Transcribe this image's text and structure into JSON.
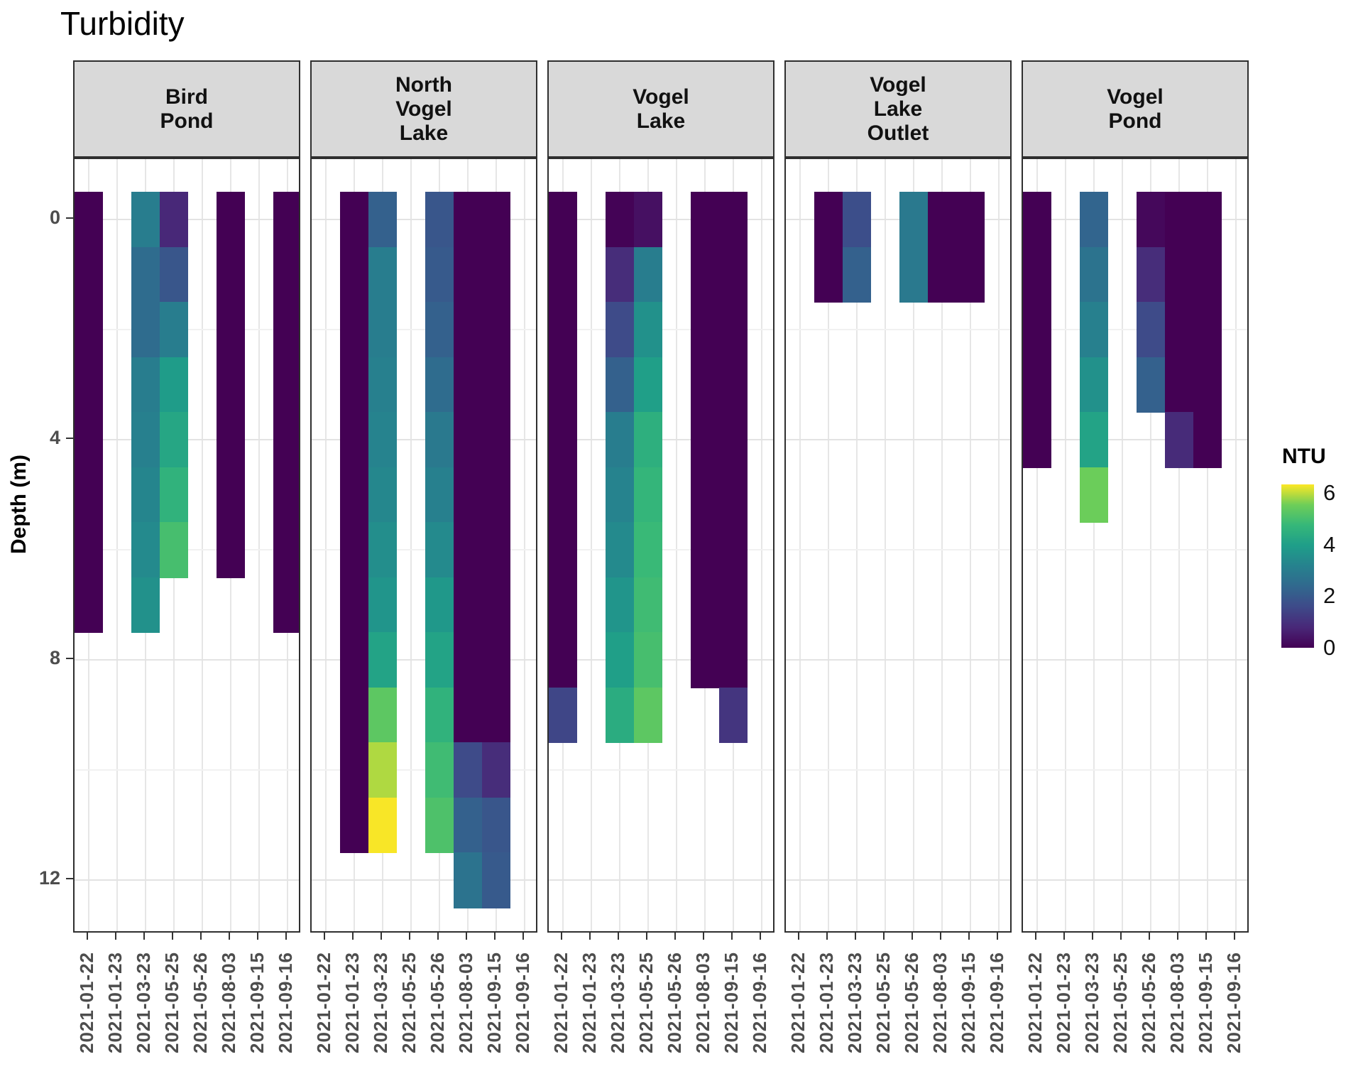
{
  "title": "Turbidity",
  "legend": {
    "title": "NTU",
    "ticks": [
      6,
      4,
      2,
      0
    ],
    "scale_max": 6.33
  },
  "colors": {
    "strip_background": "#d9d9d9",
    "panel_border": "#2f2f2f",
    "axis_text": "#4d4d4d",
    "viridis_anchors": [
      "#440154",
      "#482878",
      "#3e4a89",
      "#31688e",
      "#26828e",
      "#1f9e89",
      "#35b779",
      "#6ece58",
      "#fde725"
    ]
  },
  "chart_data": {
    "type": "heatmap",
    "title": "Turbidity",
    "xlabel": "",
    "ylabel": "Depth (m)",
    "grid": true,
    "legend_position": "right",
    "x_categories": [
      "2021-01-22",
      "2021-01-23",
      "2021-03-23",
      "2021-05-25",
      "2021-05-26",
      "2021-08-03",
      "2021-09-15",
      "2021-09-16"
    ],
    "y_axis": {
      "label": "Depth (m)",
      "ticks": [
        0,
        4,
        8,
        12
      ],
      "ylim": [
        -1.1,
        13.0
      ],
      "tile_height_m": 1,
      "first_tile_center_m": 0
    },
    "color_scale": {
      "name": "viridis",
      "label": "NTU",
      "domain": [
        0,
        6.33
      ],
      "legend_ticks": [
        6,
        4,
        2,
        0
      ]
    },
    "facets": [
      {
        "site": "Bird Pond",
        "label_lines": [
          "Bird",
          "Pond"
        ],
        "columns": [
          {
            "date": "2021-01-22",
            "values": [
              0,
              0,
              0,
              0,
              0,
              0,
              0,
              0
            ]
          },
          {
            "date": "2021-03-23",
            "values": [
              3.0,
              2.5,
              2.5,
              3.0,
              3.1,
              3.25,
              3.4,
              3.6
            ]
          },
          {
            "date": "2021-05-25",
            "values": [
              0.8,
              1.9,
              3.0,
              3.9,
              4.2,
              4.6,
              5.0
            ]
          },
          {
            "date": "2021-08-03",
            "values": [
              0,
              0,
              0,
              0,
              0,
              0,
              0
            ]
          },
          {
            "date": "2021-09-16",
            "values": [
              0,
              0,
              0,
              0,
              0,
              0,
              0,
              0
            ]
          }
        ]
      },
      {
        "site": "North Vogel Lake",
        "label_lines": [
          "North",
          "Vogel",
          "Lake"
        ],
        "columns": [
          {
            "date": "2021-01-23",
            "values": [
              0,
              0,
              0,
              0,
              0,
              0,
              0,
              0,
              0,
              0,
              0,
              0
            ]
          },
          {
            "date": "2021-03-23",
            "values": [
              2.2,
              3.0,
              3.0,
              3.1,
              3.2,
              3.3,
              3.5,
              3.7,
              4.1,
              5.3,
              5.9,
              6.3
            ]
          },
          {
            "date": "2021-05-26",
            "values": [
              1.9,
              2.0,
              2.2,
              2.5,
              2.9,
              3.1,
              3.4,
              3.8,
              4.1,
              4.6,
              4.9,
              5.1
            ]
          },
          {
            "date": "2021-08-03",
            "values": [
              0,
              0,
              0,
              0,
              0,
              0,
              0,
              0,
              0,
              0,
              1.6,
              2.2,
              2.7
            ]
          },
          {
            "date": "2021-09-15",
            "values": [
              0,
              0,
              0,
              0,
              0,
              0,
              0,
              0,
              0,
              0,
              0.9,
              1.9,
              2.0
            ]
          }
        ]
      },
      {
        "site": "Vogel Lake",
        "label_lines": [
          "Vogel",
          "Lake"
        ],
        "columns": [
          {
            "date": "2021-01-22",
            "values": [
              0,
              0,
              0,
              0,
              0,
              0,
              0,
              0,
              0,
              1.5
            ]
          },
          {
            "date": "2021-03-23",
            "values": [
              0.05,
              0.9,
              1.6,
              2.2,
              3.0,
              3.2,
              3.4,
              3.7,
              4.0,
              4.4
            ]
          },
          {
            "date": "2021-05-25",
            "values": [
              0.3,
              3.0,
              3.6,
              4.0,
              4.5,
              4.7,
              4.8,
              4.9,
              5.0,
              5.3
            ]
          },
          {
            "date": "2021-08-03",
            "values": [
              0,
              0,
              0,
              0,
              0,
              0,
              0,
              0,
              0
            ]
          },
          {
            "date": "2021-09-15",
            "values": [
              0,
              0,
              0,
              0,
              0,
              0,
              0,
              0,
              0,
              1.1
            ]
          }
        ]
      },
      {
        "site": "Vogel Lake Outlet",
        "label_lines": [
          "Vogel",
          "Lake",
          "Outlet"
        ],
        "columns": [
          {
            "date": "2021-01-23",
            "values": [
              0,
              0
            ]
          },
          {
            "date": "2021-03-23",
            "values": [
              1.7,
              2.2
            ]
          },
          {
            "date": "2021-05-26",
            "values": [
              2.9,
              2.9
            ]
          },
          {
            "date": "2021-08-03",
            "values": [
              0,
              0
            ]
          },
          {
            "date": "2021-09-15",
            "values": [
              0,
              0
            ]
          }
        ]
      },
      {
        "site": "Vogel Pond",
        "label_lines": [
          "Vogel",
          "Pond"
        ],
        "columns": [
          {
            "date": "2021-01-22",
            "values": [
              0,
              0,
              0,
              0,
              0
            ]
          },
          {
            "date": "2021-03-23",
            "values": [
              2.3,
              2.7,
              3.1,
              3.6,
              4.1,
              5.5
            ]
          },
          {
            "date": "2021-05-26",
            "values": [
              0.15,
              0.9,
              1.6,
              2.2
            ]
          },
          {
            "date": "2021-08-03",
            "values": [
              0,
              0,
              0,
              0,
              0.85
            ]
          },
          {
            "date": "2021-09-15",
            "values": [
              0,
              0,
              0,
              0,
              0
            ]
          }
        ]
      }
    ]
  }
}
